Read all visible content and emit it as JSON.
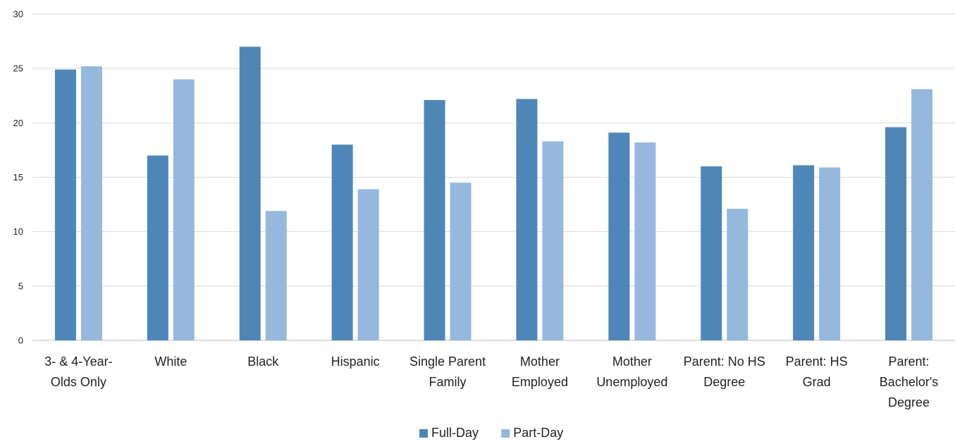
{
  "chart_data": {
    "type": "bar",
    "title": "",
    "xlabel": "",
    "ylabel": "",
    "ylim": [
      0,
      30
    ],
    "yticks": [
      0,
      5,
      10,
      15,
      20,
      25,
      30
    ],
    "grid": true,
    "legend_position": "bottom-center",
    "categories": [
      [
        "3- & 4-Year-",
        "Olds Only"
      ],
      [
        "White"
      ],
      [
        "Black"
      ],
      [
        "Hispanic"
      ],
      [
        "Single Parent",
        "Family"
      ],
      [
        "Mother",
        "Employed"
      ],
      [
        "Mother",
        "Unemployed"
      ],
      [
        "Parent: No HS",
        "Degree"
      ],
      [
        "Parent: HS",
        "Grad"
      ],
      [
        "Parent:",
        "Bachelor's",
        "Degree"
      ]
    ],
    "series": [
      {
        "name": "Full-Day",
        "color": "#4f86b8",
        "values": [
          24.9,
          17.0,
          27.0,
          18.0,
          22.1,
          22.2,
          19.1,
          16.0,
          16.1,
          19.6
        ]
      },
      {
        "name": "Part-Day",
        "color": "#97b8dd",
        "values": [
          25.2,
          24.0,
          11.9,
          13.9,
          14.5,
          18.3,
          18.2,
          12.1,
          15.9,
          23.1
        ]
      }
    ]
  }
}
